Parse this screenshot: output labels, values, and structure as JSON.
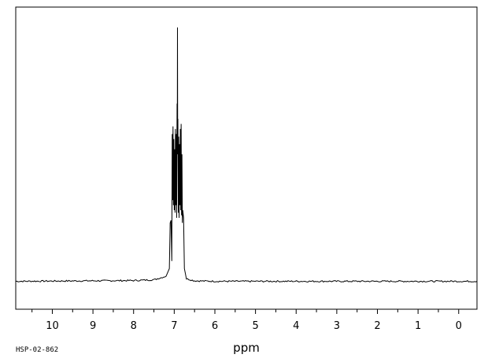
{
  "chart_data": {
    "type": "line",
    "title": "",
    "xlabel": "ppm",
    "ylabel": "",
    "xlim": [
      10.9,
      -0.45
    ],
    "ylim": [
      -0.11,
      1.08
    ],
    "x_reversed": true,
    "grid": false,
    "ticks": [
      {
        "value": 10,
        "label": "10"
      },
      {
        "value": 9,
        "label": "9"
      },
      {
        "value": 8,
        "label": "8"
      },
      {
        "value": 7,
        "label": "7"
      },
      {
        "value": 6,
        "label": "6"
      },
      {
        "value": 5,
        "label": "5"
      },
      {
        "value": 4,
        "label": "4"
      },
      {
        "value": 3,
        "label": "3"
      },
      {
        "value": 2,
        "label": "2"
      },
      {
        "value": 1,
        "label": "1"
      },
      {
        "value": 0,
        "label": "0"
      }
    ],
    "series": [
      {
        "values": [
          [
            10.9,
            0.0
          ],
          [
            8.0,
            0.003
          ],
          [
            7.5,
            0.006
          ],
          [
            7.2,
            0.02
          ],
          [
            7.12,
            0.05
          ],
          [
            7.1,
            0.23
          ],
          [
            7.08,
            0.24
          ],
          [
            7.06,
            0.08
          ],
          [
            7.05,
            0.58
          ],
          [
            7.04,
            0.32
          ],
          [
            7.03,
            0.61
          ],
          [
            7.02,
            0.3
          ],
          [
            7.01,
            0.56
          ],
          [
            7.0,
            0.28
          ],
          [
            6.99,
            0.52
          ],
          [
            6.98,
            0.27
          ],
          [
            6.97,
            0.6
          ],
          [
            6.96,
            0.3
          ],
          [
            6.95,
            0.58
          ],
          [
            6.94,
            0.25
          ],
          [
            6.93,
            0.7
          ],
          [
            6.925,
            0.5
          ],
          [
            6.92,
            1.0
          ],
          [
            6.915,
            0.55
          ],
          [
            6.91,
            0.64
          ],
          [
            6.9,
            0.27
          ],
          [
            6.89,
            0.57
          ],
          [
            6.88,
            0.25
          ],
          [
            6.87,
            0.54
          ],
          [
            6.86,
            0.3
          ],
          [
            6.85,
            0.6
          ],
          [
            6.84,
            0.28
          ],
          [
            6.83,
            0.62
          ],
          [
            6.82,
            0.26
          ],
          [
            6.81,
            0.5
          ],
          [
            6.8,
            0.23
          ],
          [
            6.79,
            0.28
          ],
          [
            6.77,
            0.25
          ],
          [
            6.75,
            0.05
          ],
          [
            6.7,
            0.01
          ],
          [
            6.5,
            0.002
          ],
          [
            6.0,
            0.0
          ],
          [
            -0.45,
            0.0
          ]
        ]
      }
    ]
  },
  "footer": {
    "code": "HSP-02-862"
  },
  "colors": {
    "line": "#000000",
    "frame": "#000000",
    "background": "#ffffff"
  }
}
